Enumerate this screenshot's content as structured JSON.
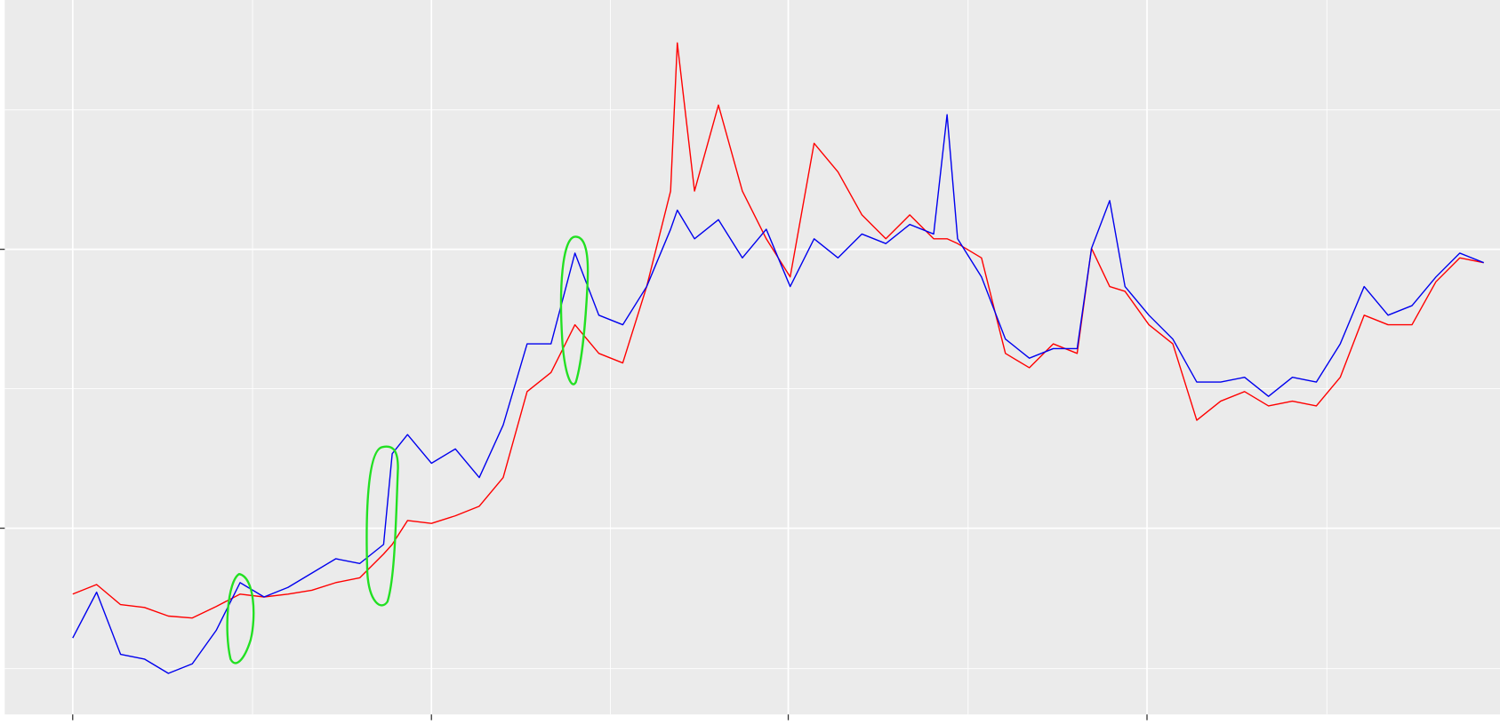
{
  "chart_data": {
    "type": "line",
    "x": [
      0,
      25,
      50,
      75,
      100,
      125,
      150,
      175,
      200,
      225,
      250,
      275,
      300,
      325,
      334,
      350,
      375,
      400,
      425,
      450,
      475,
      500,
      525,
      550,
      575,
      600,
      625,
      632,
      650,
      675,
      700,
      725,
      750,
      775,
      800,
      825,
      850,
      875,
      900,
      914,
      925,
      950,
      975,
      1000,
      1025,
      1050,
      1065,
      1084,
      1100,
      1125,
      1150,
      1175,
      1200,
      1225,
      1250,
      1275,
      1300,
      1325,
      1350,
      1375,
      1400,
      1425,
      1450,
      1475
    ],
    "series": [
      {
        "color": "#ff0000",
        "values": [
          126,
          136,
          115,
          112,
          103,
          101,
          113,
          126,
          123,
          126,
          130,
          138,
          143,
          168,
          178,
          203,
          200,
          208,
          218,
          248,
          338,
          358,
          408,
          378,
          368,
          448,
          548,
          703,
          548,
          638,
          548,
          498,
          458,
          598,
          568,
          523,
          498,
          523,
          498,
          498,
          493,
          478,
          378,
          363,
          388,
          378,
          488,
          448,
          443,
          408,
          388,
          308,
          328,
          338,
          323,
          328,
          323,
          353,
          418,
          408,
          408,
          453,
          478,
          473
        ]
      },
      {
        "color": "#0000ee",
        "values": [
          80,
          128,
          63,
          58,
          43,
          53,
          88,
          138,
          123,
          133,
          148,
          163,
          158,
          178,
          273,
          293,
          263,
          278,
          248,
          303,
          388,
          388,
          483,
          418,
          408,
          448,
          508,
          528,
          498,
          518,
          478,
          508,
          448,
          498,
          478,
          503,
          493,
          513,
          503,
          628,
          498,
          458,
          393,
          373,
          383,
          383,
          488,
          538,
          448,
          418,
          393,
          348,
          348,
          353,
          333,
          353,
          348,
          388,
          448,
          418,
          428,
          458,
          483,
          473
        ]
      }
    ],
    "xlim": [
      -71,
      1492
    ],
    "ylim": [
      0,
      748
    ],
    "xticks": [
      0,
      375,
      748,
      1123
    ],
    "yticks": [
      195,
      487
    ],
    "xminor": [
      188,
      562,
      936,
      1311
    ],
    "yminor": [
      48,
      341,
      633
    ],
    "grid": true
  }
}
